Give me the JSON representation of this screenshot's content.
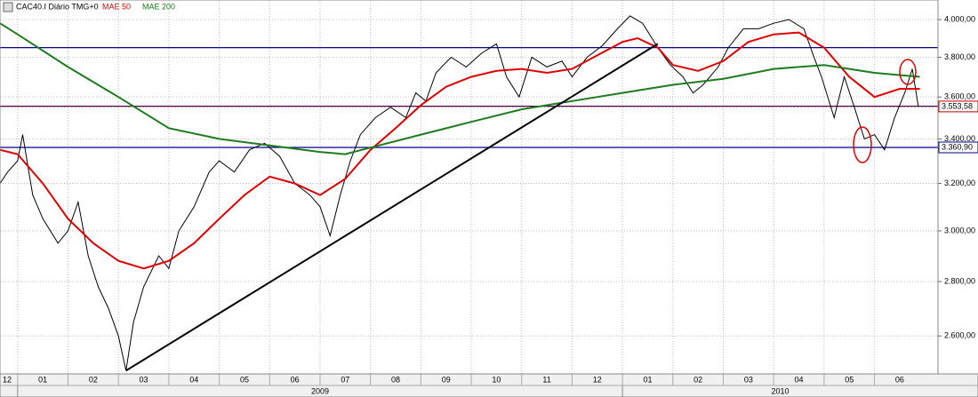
{
  "chart_data": {
    "type": "line",
    "title": "CAC40.I Diário TMG+0",
    "log_scale": true,
    "grid": true,
    "xlim": [
      0.65,
      19.26
    ],
    "ylim": [
      2469,
      4108
    ],
    "yticks": [
      {
        "value": 2600,
        "label": "2.600,00"
      },
      {
        "value": 2800,
        "label": "2.800,00"
      },
      {
        "value": 3000,
        "label": "3.000,00"
      },
      {
        "value": 3200,
        "label": "3.200,00"
      },
      {
        "value": 3400,
        "label": "3.400,00"
      },
      {
        "value": 3600,
        "label": "3.600,00"
      },
      {
        "value": 3800,
        "label": "3.800,00"
      },
      {
        "value": 4000,
        "label": "4.000,00"
      }
    ],
    "xticks": [
      {
        "value": 0,
        "label": "12"
      },
      {
        "value": 1,
        "label": "01"
      },
      {
        "value": 2,
        "label": "02"
      },
      {
        "value": 3,
        "label": "03"
      },
      {
        "value": 4,
        "label": "04"
      },
      {
        "value": 5,
        "label": "05"
      },
      {
        "value": 6,
        "label": "06"
      },
      {
        "value": 7,
        "label": "07"
      },
      {
        "value": 8,
        "label": "08"
      },
      {
        "value": 9,
        "label": "09"
      },
      {
        "value": 10,
        "label": "10"
      },
      {
        "value": 11,
        "label": "11"
      },
      {
        "value": 12,
        "label": "12"
      },
      {
        "value": 13,
        "label": "01"
      },
      {
        "value": 14,
        "label": "02"
      },
      {
        "value": 15,
        "label": "03"
      },
      {
        "value": 16,
        "label": "04"
      },
      {
        "value": 17,
        "label": "05"
      },
      {
        "value": 18,
        "label": "06"
      }
    ],
    "xyears": [
      {
        "value": 1,
        "label": "2009"
      },
      {
        "value": 13,
        "label": "2010"
      }
    ],
    "series": [
      {
        "name": "CAC40.I",
        "color": "#000000",
        "x": [
          0.65,
          0.8,
          1.0,
          1.1,
          1.3,
          1.5,
          1.8,
          2.0,
          2.2,
          2.4,
          2.6,
          2.8,
          3.0,
          3.15,
          3.3,
          3.5,
          3.8,
          4.0,
          4.2,
          4.5,
          4.8,
          5.0,
          5.3,
          5.6,
          5.9,
          6.2,
          6.5,
          6.8,
          7.0,
          7.2,
          7.4,
          7.6,
          7.8,
          8.1,
          8.4,
          8.7,
          8.9,
          9.1,
          9.3,
          9.6,
          9.9,
          10.2,
          10.5,
          10.7,
          10.95,
          11.2,
          11.5,
          11.8,
          12.0,
          12.3,
          12.6,
          12.9,
          13.15,
          13.4,
          13.7,
          13.95,
          14.2,
          14.4,
          14.6,
          14.9,
          15.1,
          15.4,
          15.7,
          16.0,
          16.3,
          16.6,
          16.8,
          16.95,
          17.2,
          17.4,
          17.6,
          17.8,
          18.0,
          18.2,
          18.4,
          18.6,
          18.75,
          18.87
        ],
        "values": [
          3200,
          3250,
          3300,
          3420,
          3150,
          3050,
          2950,
          3000,
          3120,
          2900,
          2780,
          2700,
          2600,
          2480,
          2650,
          2780,
          2900,
          2850,
          3000,
          3100,
          3250,
          3300,
          3250,
          3350,
          3380,
          3320,
          3200,
          3150,
          3100,
          2980,
          3150,
          3300,
          3420,
          3500,
          3550,
          3500,
          3620,
          3580,
          3720,
          3800,
          3750,
          3820,
          3870,
          3700,
          3600,
          3800,
          3750,
          3780,
          3700,
          3800,
          3860,
          3950,
          4020,
          3980,
          3850,
          3760,
          3700,
          3620,
          3660,
          3750,
          3850,
          3950,
          3950,
          3980,
          4000,
          3950,
          3800,
          3700,
          3500,
          3700,
          3550,
          3400,
          3420,
          3350,
          3500,
          3620,
          3740,
          3553.58
        ]
      },
      {
        "name": "MAE 50",
        "color": "#e00000",
        "x": [
          0.65,
          1.0,
          1.5,
          2.0,
          2.5,
          3.0,
          3.5,
          4.0,
          4.5,
          5.0,
          5.5,
          6.0,
          6.5,
          7.0,
          7.5,
          8.0,
          8.5,
          9.0,
          9.5,
          10.0,
          10.5,
          11.0,
          11.5,
          12.0,
          12.5,
          13.0,
          13.3,
          13.7,
          14.0,
          14.5,
          15.0,
          15.5,
          16.0,
          16.5,
          17.0,
          17.5,
          18.0,
          18.5,
          18.9
        ],
        "values": [
          3350,
          3330,
          3200,
          3050,
          2950,
          2880,
          2850,
          2880,
          2950,
          3050,
          3150,
          3230,
          3200,
          3150,
          3220,
          3350,
          3450,
          3560,
          3650,
          3700,
          3730,
          3740,
          3720,
          3740,
          3810,
          3880,
          3900,
          3850,
          3760,
          3730,
          3780,
          3880,
          3920,
          3930,
          3850,
          3700,
          3600,
          3640,
          3640
        ]
      },
      {
        "name": "MAE 200",
        "color": "#1e7b1e",
        "x": [
          0.65,
          1.0,
          2.0,
          3.0,
          4.0,
          5.0,
          6.0,
          7.0,
          7.5,
          8.0,
          9.0,
          10.0,
          11.0,
          12.0,
          13.0,
          14.0,
          15.0,
          16.0,
          17.0,
          18.0,
          18.9
        ],
        "values": [
          3980,
          3920,
          3750,
          3600,
          3450,
          3400,
          3370,
          3340,
          3330,
          3360,
          3420,
          3480,
          3540,
          3580,
          3620,
          3660,
          3690,
          3740,
          3760,
          3720,
          3700
        ]
      }
    ],
    "levels": [
      {
        "value": 3850,
        "color": "#00008b"
      },
      {
        "value": 3555,
        "color": "#00008b"
      },
      {
        "value": 3553.58,
        "label": "3.553,58",
        "color": "#c00000",
        "dotted": true
      },
      {
        "value": 3360.9,
        "label": "3.360,90",
        "color": "#00008b"
      }
    ],
    "trendline": {
      "x": [
        3.15,
        13.7
      ],
      "values": [
        2480,
        3870
      ],
      "color": "#000000"
    }
  }
}
